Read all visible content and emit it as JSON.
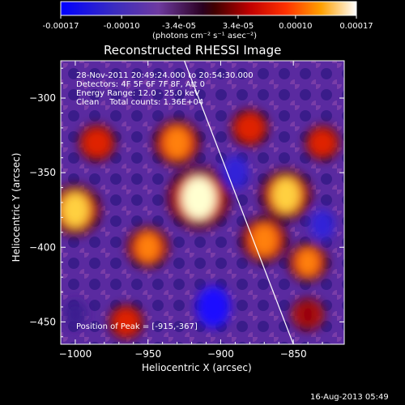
{
  "colorbar": {
    "ticks": [
      "-0.00017",
      "-0.00010",
      "-3.4e-05",
      "3.4e-05",
      "0.00010",
      "0.00017"
    ],
    "tick_values": [
      -0.00017,
      -0.0001,
      -3.4e-05,
      3.4e-05,
      0.0001,
      0.00017
    ],
    "range": [
      -0.00017,
      0.00017
    ],
    "unit_label": "(photons cm⁻² s⁻¹ asec⁻²)",
    "colors": [
      "#0000ff",
      "#4a2bb8",
      "#7a3ca8",
      "#5a0070",
      "#a00000",
      "#ff2000",
      "#ff8000",
      "#ffd000",
      "#ffffff"
    ]
  },
  "chart_data": {
    "type": "heatmap",
    "title": "Reconstructed RHESSI Image",
    "xlabel": "Heliocentric X (arcsec)",
    "ylabel": "Heliocentric Y (arcsec)",
    "xlim": [
      -1010,
      -815
    ],
    "ylim": [
      -465,
      -275
    ],
    "x_ticks": [
      -1000,
      -950,
      -900,
      -850
    ],
    "y_ticks": [
      -300,
      -350,
      -400,
      -450
    ],
    "annotations": [
      "28-Nov-2011 20:49:24.000 to 20:54:30.000",
      "Detectors: 4F 5F 6F 7F 8F, Att 0",
      "Energy Range: 12.0 - 25.0 keV",
      "Clean    Total counts: 1.36E+04"
    ],
    "peak_label": "Position of Peak = [-915,-367]",
    "peak": [
      -915,
      -367
    ],
    "limb_line": [
      [
        -925,
        -275
      ],
      [
        -850,
        -465
      ]
    ],
    "sources": [
      {
        "x": -930,
        "y": -330,
        "value": 0.0001
      },
      {
        "x": -915,
        "y": -367,
        "value": 0.00017
      },
      {
        "x": -950,
        "y": -400,
        "value": 8e-05
      },
      {
        "x": -1000,
        "y": -375,
        "value": 0.00012
      },
      {
        "x": -985,
        "y": -330,
        "value": 6e-05
      },
      {
        "x": -855,
        "y": -365,
        "value": 0.00012
      },
      {
        "x": -870,
        "y": -395,
        "value": 0.0001
      },
      {
        "x": -840,
        "y": -410,
        "value": 7e-05
      },
      {
        "x": -880,
        "y": -320,
        "value": 6e-05
      },
      {
        "x": -830,
        "y": -330,
        "value": 5e-05
      },
      {
        "x": -965,
        "y": -450,
        "value": 5e-05
      },
      {
        "x": -840,
        "y": -445,
        "value": 4e-05
      },
      {
        "x": -905,
        "y": -440,
        "value": -0.00017
      },
      {
        "x": -890,
        "y": -350,
        "value": -0.00012
      },
      {
        "x": -830,
        "y": -385,
        "value": -0.0001
      },
      {
        "x": -1000,
        "y": -445,
        "value": -8e-05
      }
    ]
  },
  "timestamp": "16-Aug-2013 05:49"
}
